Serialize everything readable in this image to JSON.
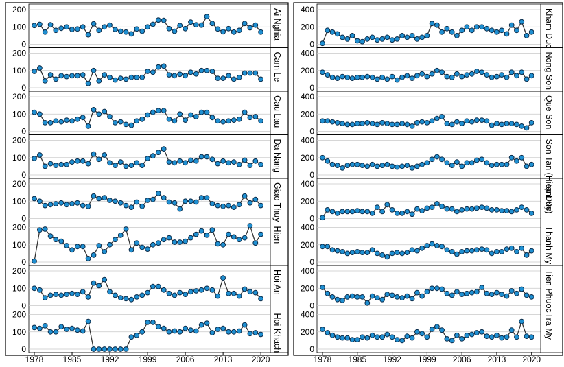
{
  "chart_data": [
    {
      "type": "line",
      "panel": "left",
      "x_ticks": [
        "1978",
        "1985",
        "1992",
        "1999",
        "2006",
        "2013",
        "2020"
      ],
      "xlim": [
        1978,
        2021
      ],
      "ylim": [
        0,
        200
      ],
      "y_ticks": [
        0,
        100,
        200
      ],
      "grid": true,
      "series": [
        {
          "name": "Ai Nghia",
          "x_start": 1978,
          "values": [
            108,
            115,
            70,
            112,
            80,
            92,
            100,
            85,
            88,
            100,
            55,
            118,
            80,
            100,
            110,
            85,
            75,
            70,
            60,
            88,
            75,
            100,
            115,
            140,
            138,
            90,
            75,
            108,
            90,
            128,
            112,
            110,
            160,
            120,
            88,
            72,
            90,
            70,
            80,
            120,
            95,
            110,
            70
          ]
        },
        {
          "name": "Cam Le",
          "x_start": 1978,
          "values": [
            95,
            115,
            40,
            75,
            50,
            70,
            65,
            70,
            70,
            75,
            25,
            100,
            40,
            75,
            60,
            45,
            55,
            50,
            60,
            60,
            60,
            95,
            90,
            120,
            125,
            75,
            70,
            78,
            70,
            90,
            80,
            100,
            100,
            95,
            55,
            55,
            70,
            50,
            60,
            85,
            85,
            85,
            50
          ]
        },
        {
          "name": "Cau Lau",
          "x_start": 1978,
          "values": [
            110,
            100,
            50,
            50,
            60,
            55,
            65,
            60,
            70,
            80,
            30,
            125,
            100,
            115,
            85,
            50,
            55,
            40,
            35,
            60,
            70,
            95,
            110,
            120,
            120,
            70,
            60,
            100,
            65,
            95,
            85,
            110,
            110,
            80,
            60,
            55,
            60,
            65,
            70,
            110,
            80,
            85,
            60
          ]
        },
        {
          "name": "Da Nang",
          "x_start": 1978,
          "values": [
            95,
            115,
            50,
            65,
            55,
            60,
            60,
            75,
            80,
            80,
            65,
            120,
            90,
            115,
            70,
            55,
            75,
            50,
            55,
            70,
            55,
            95,
            110,
            130,
            150,
            75,
            70,
            80,
            70,
            85,
            80,
            105,
            105,
            90,
            65,
            80,
            70,
            75,
            60,
            85,
            55,
            80,
            60
          ]
        },
        {
          "name": "Giao Thuy",
          "x_start": 1978,
          "values": [
            115,
            100,
            75,
            80,
            85,
            90,
            80,
            85,
            90,
            75,
            70,
            130,
            115,
            120,
            105,
            100,
            90,
            75,
            65,
            95,
            70,
            105,
            110,
            145,
            120,
            95,
            90,
            55,
            100,
            100,
            95,
            120,
            120,
            85,
            75,
            70,
            75,
            65,
            80,
            130,
            90,
            110,
            75
          ]
        },
        {
          "name": "Hien",
          "x_start": 1978,
          "values": [
            5,
            185,
            190,
            150,
            130,
            120,
            95,
            70,
            90,
            90,
            20,
            40,
            95,
            60,
            100,
            130,
            155,
            190,
            70,
            110,
            85,
            75,
            100,
            110,
            130,
            140,
            115,
            115,
            120,
            140,
            160,
            180,
            155,
            185,
            105,
            100,
            160,
            145,
            130,
            140,
            210,
            110,
            160
          ]
        },
        {
          "name": "Hoi An",
          "x_start": 1978,
          "values": [
            100,
            90,
            45,
            60,
            65,
            60,
            65,
            70,
            65,
            80,
            50,
            130,
            115,
            150,
            80,
            60,
            45,
            40,
            35,
            50,
            60,
            75,
            110,
            110,
            90,
            70,
            60,
            75,
            65,
            80,
            85,
            90,
            100,
            90,
            55,
            160,
            70,
            70,
            55,
            95,
            80,
            75,
            40
          ]
        },
        {
          "name": "Hoi Khach",
          "x_start": 1978,
          "values": [
            125,
            120,
            135,
            100,
            100,
            130,
            115,
            120,
            110,
            105,
            160,
            0,
            0,
            0,
            0,
            0,
            0,
            0,
            70,
            80,
            100,
            155,
            155,
            130,
            120,
            100,
            105,
            100,
            120,
            110,
            105,
            140,
            150,
            95,
            115,
            120,
            100,
            100,
            105,
            140,
            90,
            95,
            85
          ]
        }
      ]
    },
    {
      "type": "line",
      "panel": "right",
      "x_ticks": [
        "1978",
        "1985",
        "1992",
        "1999",
        "2006",
        "2013",
        "2020"
      ],
      "xlim": [
        1978,
        2021
      ],
      "ylim": [
        0,
        400
      ],
      "y_ticks": [
        0,
        200,
        400
      ],
      "grid": true,
      "series": [
        {
          "name": "Kham Duc",
          "x_start": 1978,
          "values": [
            10,
            160,
            140,
            120,
            80,
            60,
            100,
            40,
            30,
            60,
            80,
            50,
            60,
            80,
            50,
            60,
            100,
            80,
            100,
            60,
            80,
            100,
            240,
            220,
            140,
            180,
            140,
            100,
            160,
            200,
            160,
            200,
            200,
            180,
            160,
            140,
            160,
            120,
            220,
            160,
            260,
            100,
            140
          ]
        },
        {
          "name": "Nong Son",
          "x_start": 1978,
          "values": [
            180,
            150,
            120,
            110,
            130,
            120,
            110,
            120,
            120,
            130,
            120,
            100,
            120,
            100,
            130,
            90,
            120,
            140,
            110,
            140,
            160,
            130,
            160,
            200,
            180,
            130,
            120,
            160,
            130,
            150,
            160,
            190,
            180,
            150,
            120,
            130,
            150,
            120,
            180,
            140,
            180,
            100,
            140
          ]
        },
        {
          "name": "Que Son",
          "x_start": 1978,
          "values": [
            120,
            120,
            110,
            100,
            90,
            80,
            80,
            90,
            90,
            100,
            90,
            80,
            100,
            90,
            80,
            80,
            90,
            80,
            60,
            100,
            110,
            100,
            120,
            150,
            170,
            90,
            80,
            110,
            90,
            120,
            110,
            130,
            130,
            120,
            70,
            90,
            80,
            90,
            90,
            80,
            60,
            40,
            100
          ]
        },
        {
          "name": "Son Tan (Hiep Duc)",
          "x_start": 1978,
          "values": [
            200,
            160,
            120,
            110,
            80,
            110,
            120,
            120,
            110,
            100,
            120,
            100,
            110,
            120,
            100,
            90,
            100,
            110,
            80,
            100,
            120,
            140,
            180,
            210,
            180,
            140,
            110,
            150,
            100,
            140,
            140,
            170,
            180,
            140,
            110,
            120,
            120,
            120,
            200,
            160,
            200,
            100,
            120
          ]
        },
        {
          "name": "Tam Ky",
          "x_start": 1978,
          "values": [
            10,
            100,
            80,
            60,
            80,
            80,
            80,
            90,
            80,
            80,
            60,
            130,
            80,
            160,
            100,
            60,
            60,
            80,
            50,
            110,
            90,
            120,
            130,
            170,
            140,
            110,
            110,
            80,
            100,
            110,
            110,
            120,
            130,
            120,
            100,
            100,
            90,
            90,
            80,
            100,
            130,
            100,
            60
          ]
        },
        {
          "name": "Thanh My",
          "x_start": 1978,
          "values": [
            180,
            180,
            140,
            130,
            120,
            100,
            110,
            120,
            110,
            110,
            140,
            100,
            80,
            60,
            100,
            110,
            100,
            110,
            140,
            130,
            160,
            190,
            210,
            190,
            180,
            140,
            120,
            90,
            120,
            130,
            130,
            140,
            150,
            140,
            100,
            120,
            120,
            150,
            160,
            120,
            160,
            80,
            130
          ]
        },
        {
          "name": "Tien Phuoc",
          "x_start": 1978,
          "values": [
            210,
            140,
            100,
            70,
            60,
            100,
            110,
            100,
            100,
            30,
            110,
            90,
            70,
            130,
            120,
            100,
            90,
            110,
            80,
            150,
            110,
            160,
            200,
            200,
            190,
            140,
            120,
            160,
            130,
            140,
            150,
            160,
            210,
            140,
            130,
            150,
            130,
            110,
            170,
            140,
            190,
            120,
            100
          ]
        },
        {
          "name": "Tra My",
          "x_start": 1978,
          "values": [
            230,
            190,
            160,
            140,
            130,
            130,
            110,
            110,
            140,
            130,
            160,
            140,
            140,
            170,
            140,
            110,
            100,
            150,
            130,
            200,
            180,
            140,
            230,
            260,
            220,
            120,
            100,
            160,
            120,
            160,
            170,
            190,
            200,
            150,
            140,
            160,
            130,
            140,
            220,
            140,
            320,
            150,
            140
          ]
        }
      ]
    }
  ]
}
